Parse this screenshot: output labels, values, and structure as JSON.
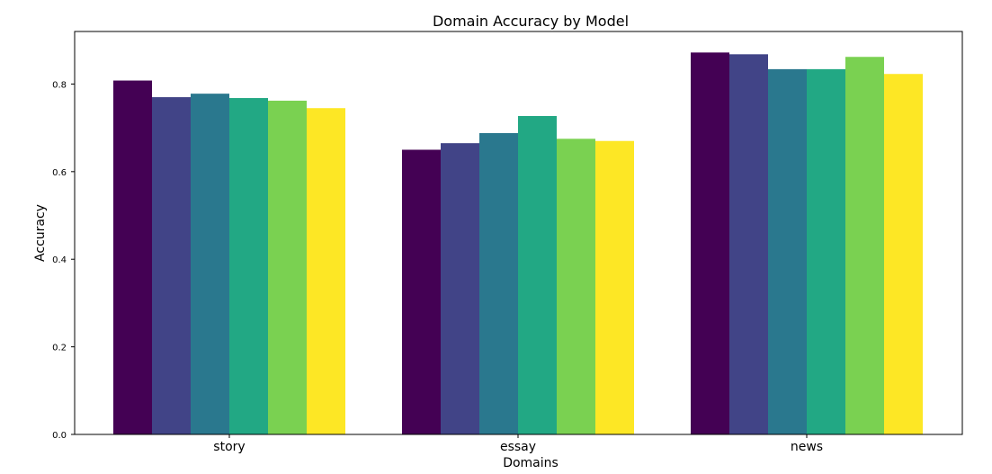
{
  "chart_data": {
    "type": "bar",
    "title": "Domain Accuracy by Model",
    "xlabel": "Domains",
    "ylabel": "Accuracy",
    "categories": [
      "story",
      "essay",
      "news"
    ],
    "ylim": [
      0,
      0.92
    ],
    "yticks": [
      "0.0",
      "0.2",
      "0.4",
      "0.6",
      "0.8"
    ],
    "ytick_values": [
      0.0,
      0.2,
      0.4,
      0.6,
      0.8
    ],
    "grid": false,
    "legend": "none",
    "colors": [
      "#440154",
      "#414487",
      "#2a788e",
      "#22a884",
      "#7ad151",
      "#fde725"
    ],
    "series": [
      {
        "values": [
          0.808,
          0.65,
          0.872
        ]
      },
      {
        "values": [
          0.77,
          0.665,
          0.868
        ]
      },
      {
        "values": [
          0.778,
          0.688,
          0.834
        ]
      },
      {
        "values": [
          0.768,
          0.727,
          0.834
        ]
      },
      {
        "values": [
          0.762,
          0.675,
          0.862
        ]
      },
      {
        "values": [
          0.745,
          0.67,
          0.823
        ]
      }
    ]
  }
}
